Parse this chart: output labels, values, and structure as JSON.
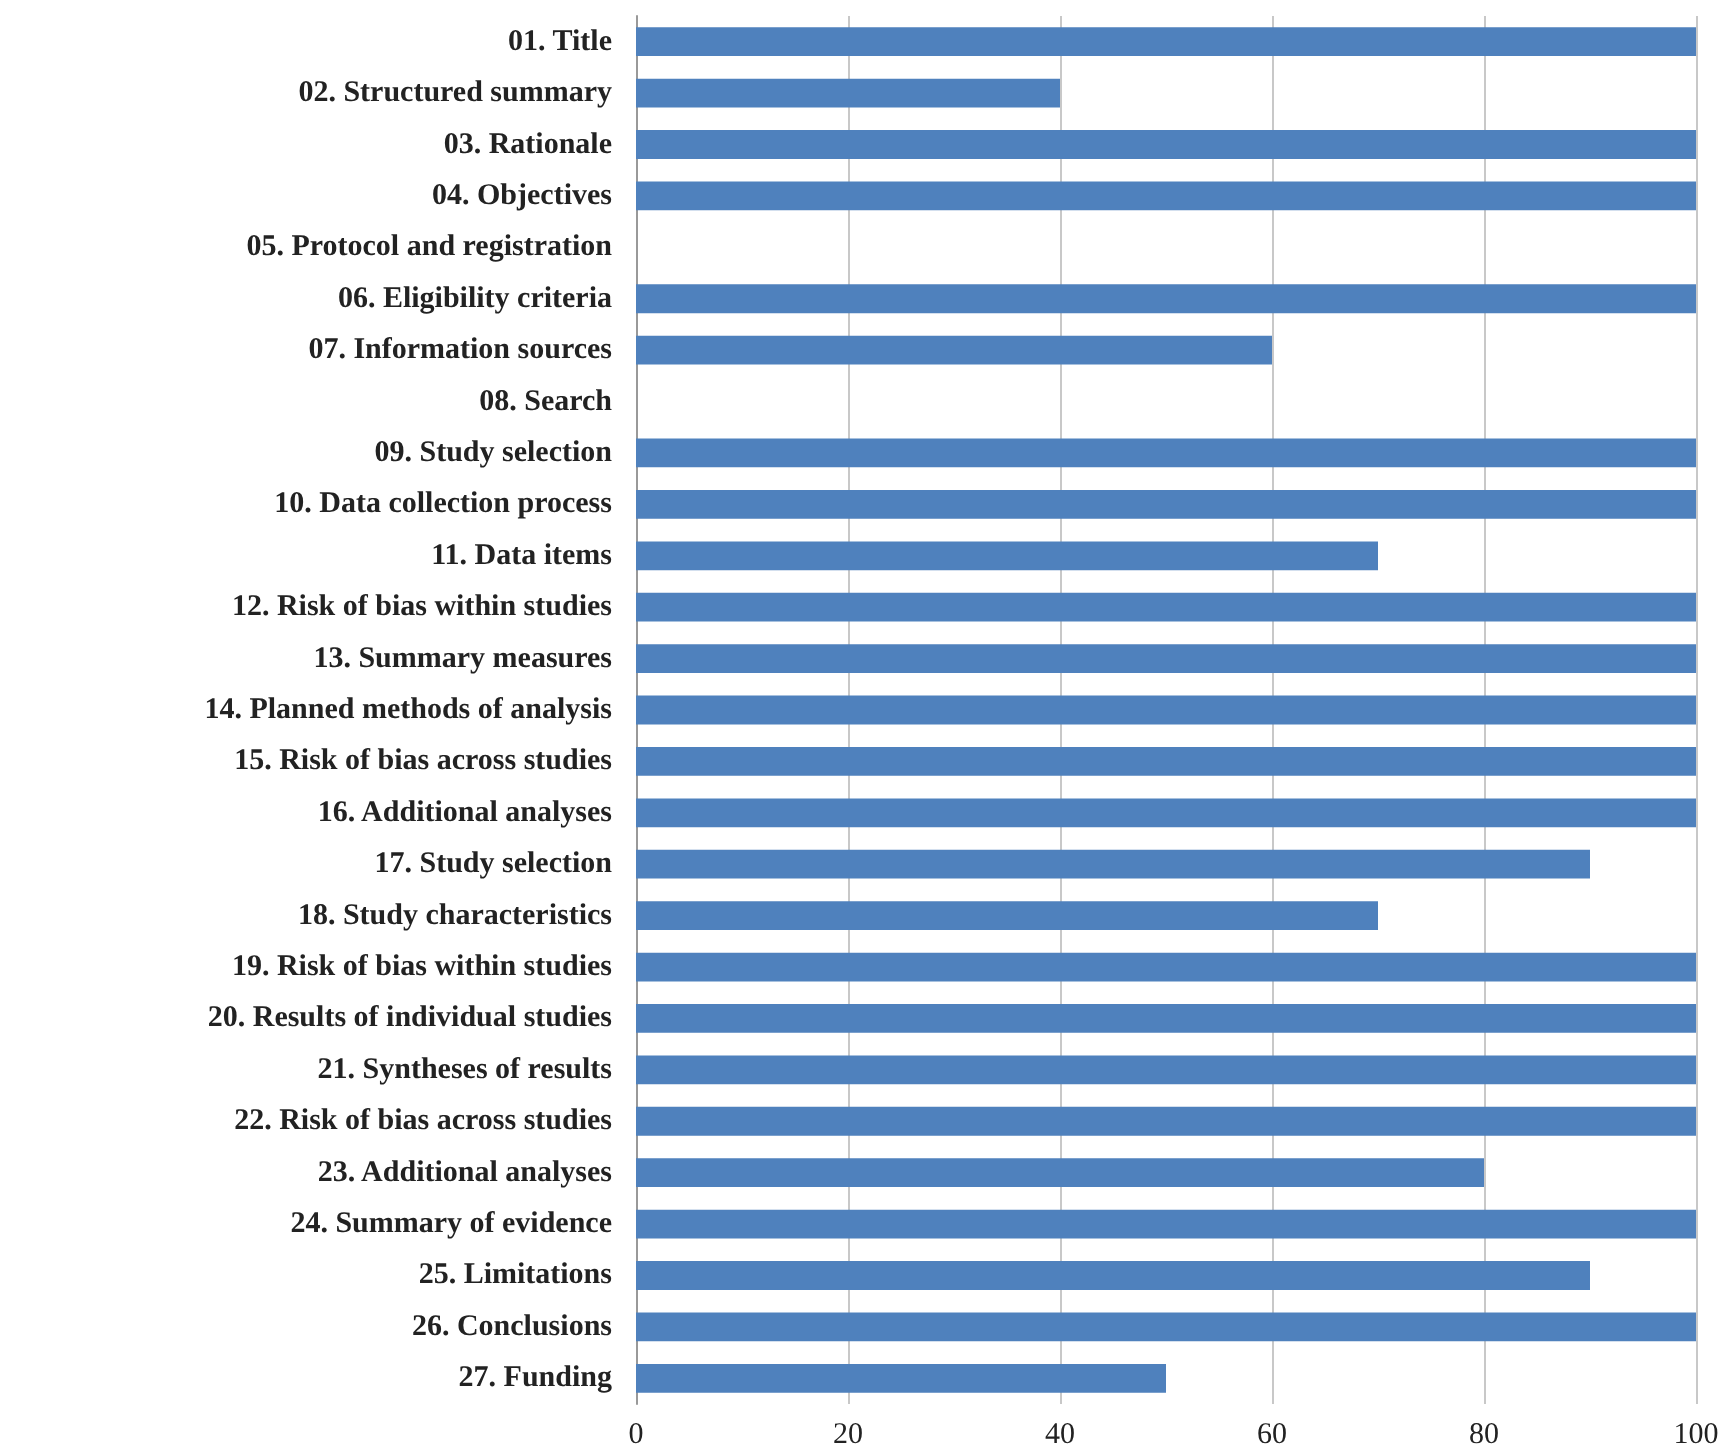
{
  "chart_data": {
    "type": "bar",
    "orientation": "horizontal",
    "categories": [
      "01. Title",
      "02. Structured summary",
      "03. Rationale",
      "04. Objectives",
      "05. Protocol and registration",
      "06. Eligibility criteria",
      "07. Information sources",
      "08. Search",
      "09. Study selection",
      "10. Data collection process",
      "11. Data items",
      "12. Risk of bias within studies",
      "13. Summary measures",
      "14. Planned methods of analysis",
      "15. Risk of bias across studies",
      "16. Additional analyses",
      "17. Study selection",
      "18. Study characteristics",
      "19. Risk of bias within studies",
      "20. Results of individual studies",
      "21. Syntheses of results",
      "22. Risk of bias across studies",
      "23. Additional analyses",
      "24. Summary of evidence",
      "25. Limitations",
      "26. Conclusions",
      "27. Funding"
    ],
    "values": [
      100,
      40,
      100,
      100,
      0,
      100,
      60,
      0,
      100,
      100,
      70,
      100,
      100,
      100,
      100,
      100,
      90,
      70,
      100,
      100,
      100,
      100,
      80,
      100,
      90,
      100,
      50
    ],
    "color": "#4f81bd",
    "xlim": [
      0,
      100
    ],
    "xticks": [
      0,
      20,
      40,
      60,
      80,
      100
    ],
    "grid": "x"
  }
}
